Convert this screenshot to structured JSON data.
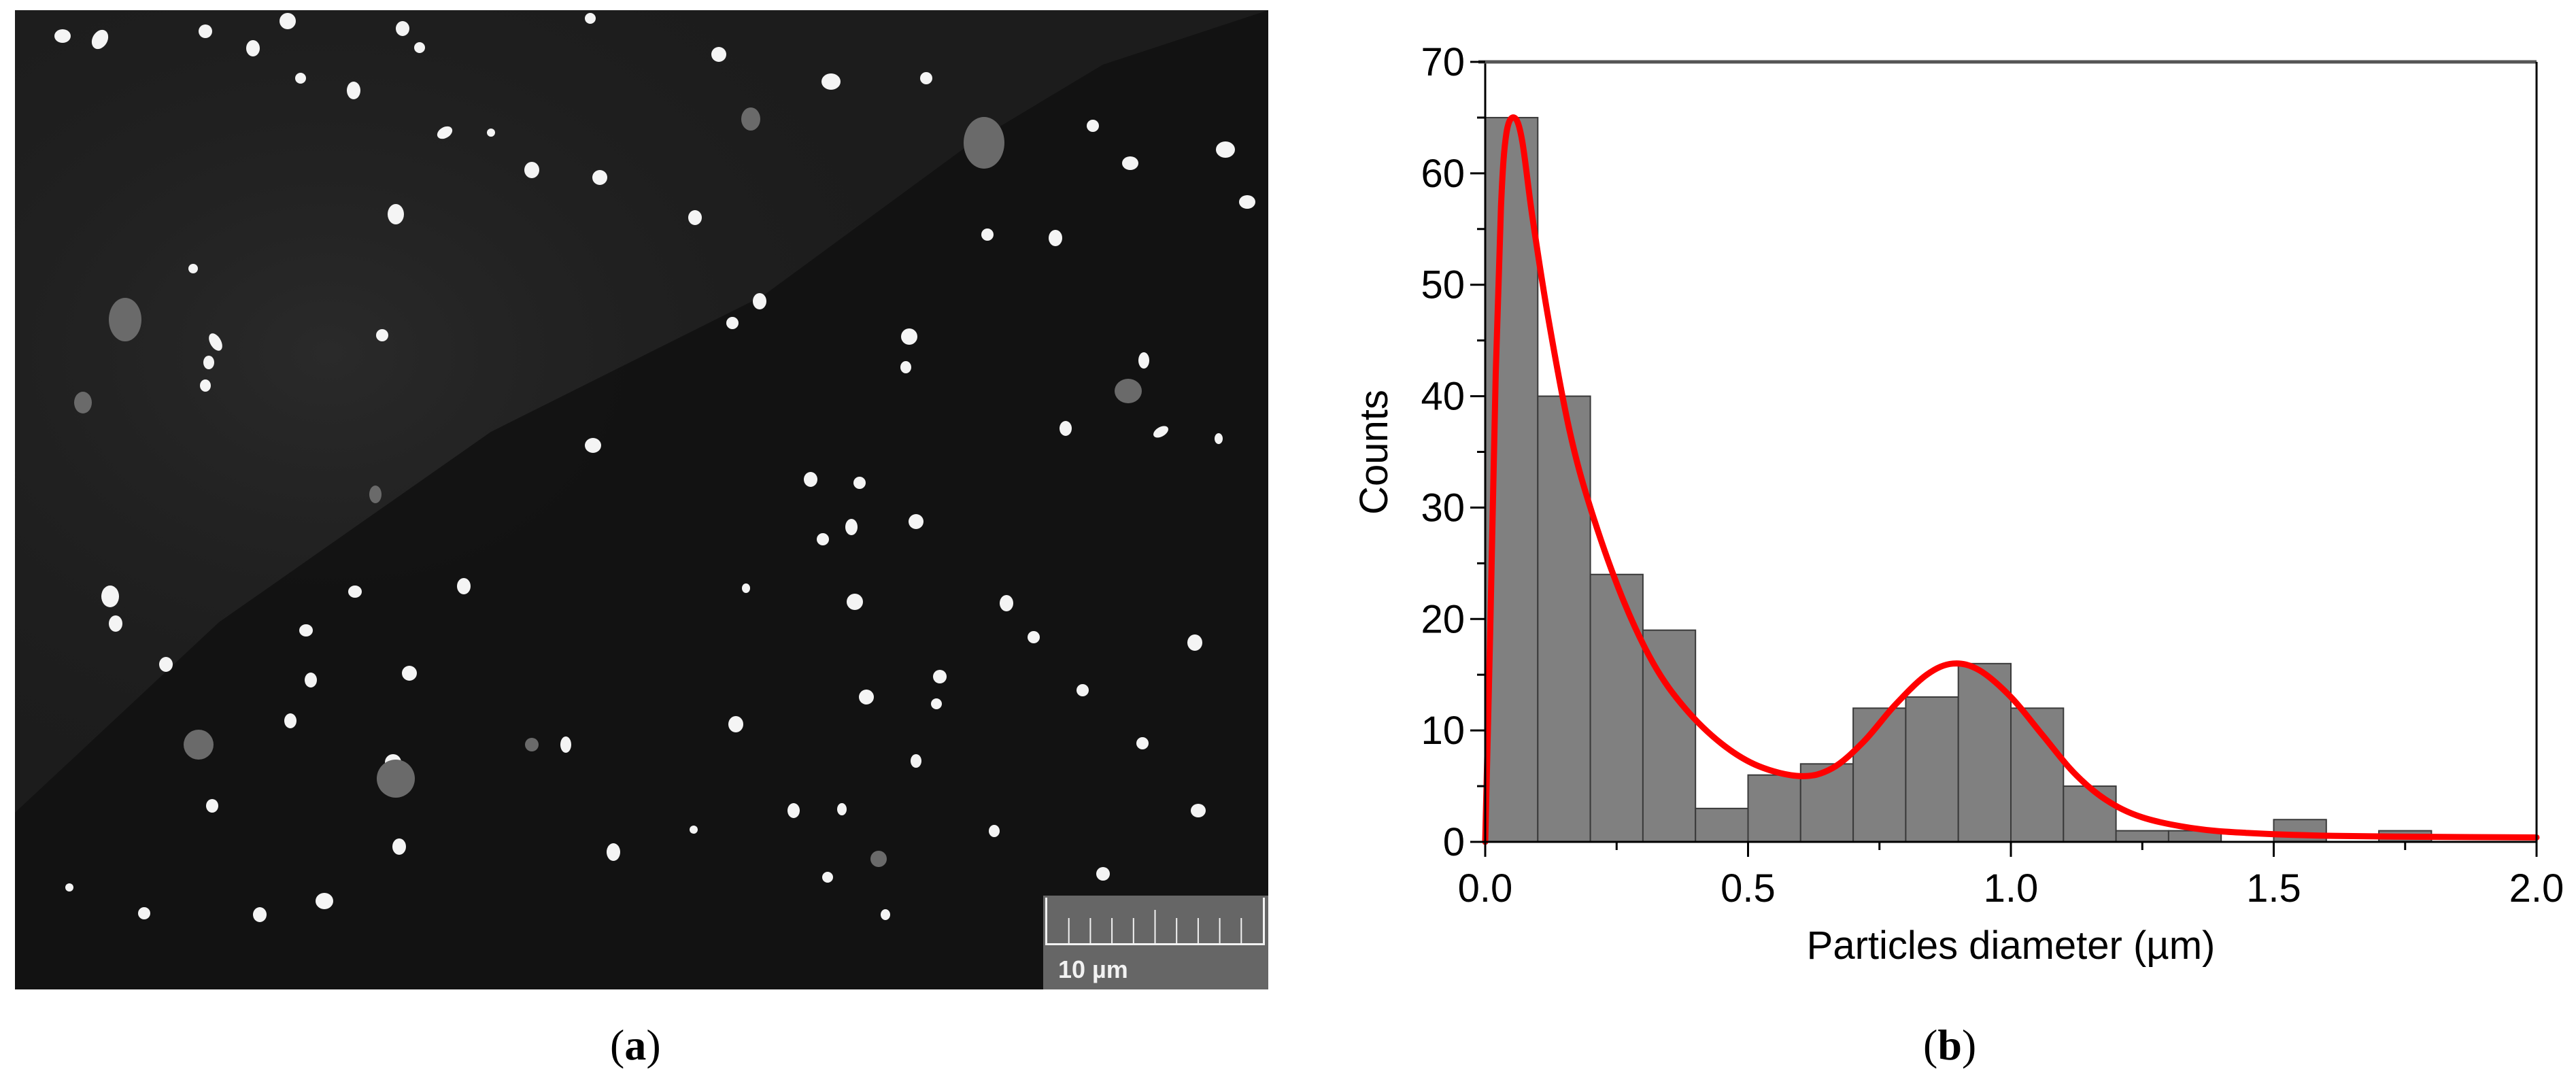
{
  "figure": {
    "panel_a": {
      "caption_letter": "a",
      "caption_open": "(",
      "caption_close": ")",
      "description": "SEM micrograph of particles",
      "scale_bar": {
        "label": "10 µm",
        "ticks": 10
      }
    },
    "panel_b": {
      "caption_letter": "b",
      "caption_open": "(",
      "caption_close": ")"
    }
  },
  "colors": {
    "bar_fill": "#808080",
    "bar_edge": "#3a3a3a",
    "fit_line": "#ff0000",
    "axis": "#000000",
    "sem_background": "#1c1c1c",
    "particle": "#f4f4f4",
    "scalebar_bg": "#666666"
  },
  "chart_data": {
    "type": "bar",
    "subtype": "histogram_with_fit",
    "title": "",
    "xlabel": "Particles diameter (µm)",
    "ylabel": "Counts",
    "xlim": [
      0.0,
      2.0
    ],
    "ylim": [
      0,
      70
    ],
    "xticks": [
      "0.0",
      "0.5",
      "1.0",
      "1.5",
      "2.0"
    ],
    "yticks": [
      "0",
      "10",
      "20",
      "30",
      "40",
      "50",
      "60",
      "70"
    ],
    "grid": false,
    "legend": null,
    "bin_width": 0.1,
    "categories": [
      "0.0-0.1",
      "0.1-0.2",
      "0.2-0.3",
      "0.3-0.4",
      "0.4-0.5",
      "0.5-0.6",
      "0.6-0.7",
      "0.7-0.8",
      "0.8-0.9",
      "0.9-1.0",
      "1.0-1.1",
      "1.1-1.2",
      "1.2-1.3",
      "1.3-1.4",
      "1.4-1.5",
      "1.5-1.6",
      "1.6-1.7",
      "1.7-1.8",
      "1.8-1.9",
      "1.9-2.0"
    ],
    "bin_starts": [
      0.0,
      0.1,
      0.2,
      0.3,
      0.4,
      0.5,
      0.6,
      0.7,
      0.8,
      0.9,
      1.0,
      1.1,
      1.2,
      1.3,
      1.4,
      1.5,
      1.6,
      1.7,
      1.8,
      1.9
    ],
    "values": [
      65,
      40,
      24,
      19,
      3,
      6,
      7,
      12,
      13,
      16,
      12,
      5,
      1,
      1,
      0,
      2,
      0,
      1,
      0,
      0
    ],
    "series": [
      {
        "name": "Counts (histogram)",
        "type": "bar",
        "values": [
          65,
          40,
          24,
          19,
          3,
          6,
          7,
          12,
          13,
          16,
          12,
          5,
          1,
          1,
          0,
          2,
          0,
          1,
          0,
          0
        ]
      },
      {
        "name": "Bimodal fit",
        "type": "line",
        "x": [
          0.0,
          0.01,
          0.02,
          0.03,
          0.04,
          0.055,
          0.07,
          0.09,
          0.12,
          0.16,
          0.2,
          0.26,
          0.32,
          0.38,
          0.45,
          0.52,
          0.6,
          0.66,
          0.72,
          0.78,
          0.84,
          0.89,
          0.94,
          1.0,
          1.06,
          1.12,
          1.18,
          1.25,
          1.35,
          1.45,
          1.6,
          1.8,
          2.0
        ],
        "y": [
          0.0,
          20,
          42,
          57,
          63.5,
          65,
          63,
          56,
          47,
          37,
          30,
          22,
          16,
          12,
          8.8,
          6.8,
          5.9,
          6.6,
          9.0,
          12.3,
          15.0,
          16.0,
          15.4,
          13.0,
          9.6,
          6.2,
          3.8,
          2.2,
          1.2,
          0.8,
          0.55,
          0.45,
          0.4
        ]
      }
    ]
  }
}
